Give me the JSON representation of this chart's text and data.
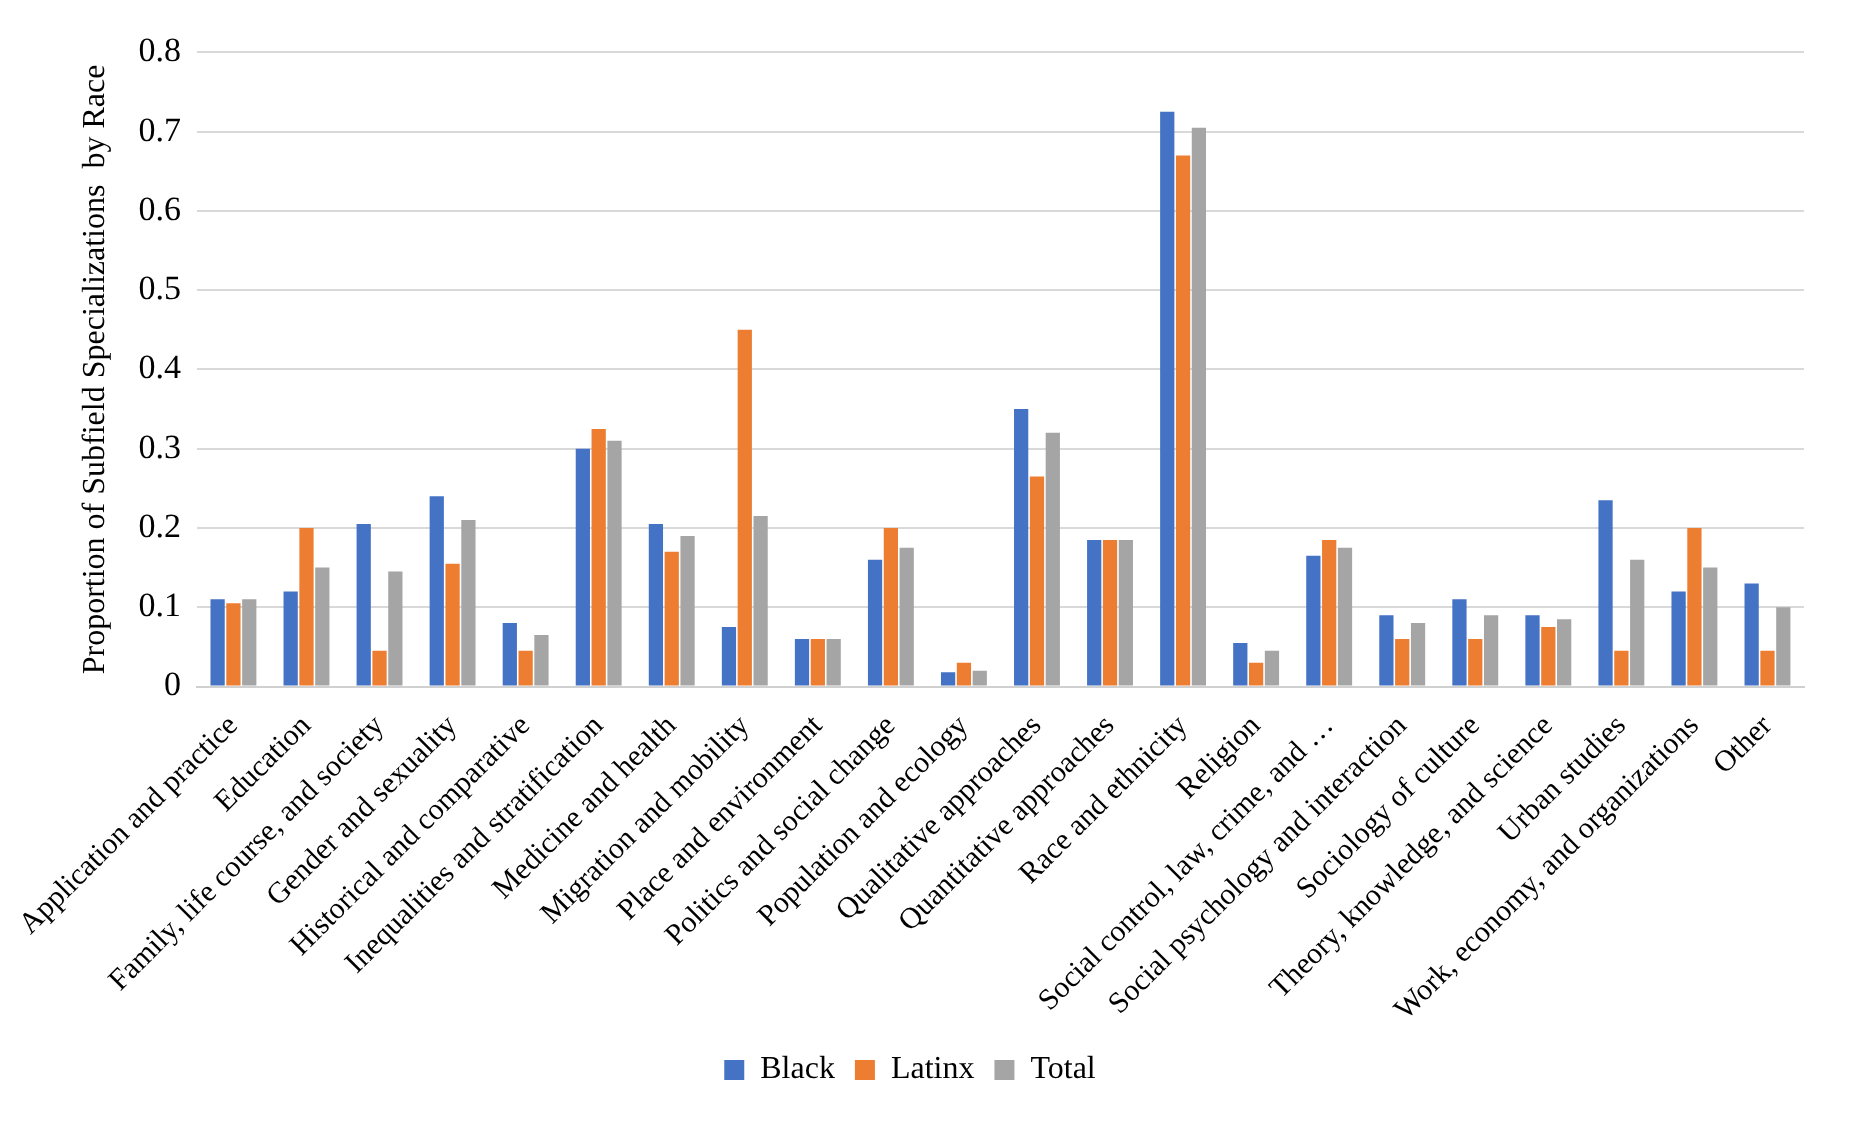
{
  "chart_data": {
    "type": "bar",
    "ylabel": "Proportion of Subfield Specializations  by Race",
    "categories": [
      "Application and practice",
      "Education",
      "Family, life course, and society",
      "Gender and sexuality",
      "Historical and comparative",
      "Inequalities and stratification",
      "Medicine and health",
      "Migration and mobility",
      "Place and environment",
      "Politics and social change",
      "Population and ecology",
      "Qualitative approaches",
      "Quantitative approaches",
      "Race and ethnicity",
      "Religion",
      "Social control, law, crime, and …",
      "Social psychology and interaction",
      "Sociology of culture",
      "Theory, knowledge, and science",
      "Urban studies",
      "Work, economy, and organizations",
      "Other"
    ],
    "series": [
      {
        "name": "Black",
        "color": "#4472c4",
        "values": [
          0.11,
          0.12,
          0.205,
          0.24,
          0.08,
          0.3,
          0.205,
          0.075,
          0.06,
          0.16,
          0.018,
          0.35,
          0.185,
          0.725,
          0.055,
          0.165,
          0.09,
          0.11,
          0.09,
          0.235,
          0.12,
          0.13
        ]
      },
      {
        "name": "Latinx",
        "color": "#ed7d31",
        "values": [
          0.105,
          0.2,
          0.045,
          0.155,
          0.045,
          0.325,
          0.17,
          0.45,
          0.06,
          0.2,
          0.03,
          0.265,
          0.185,
          0.67,
          0.03,
          0.185,
          0.06,
          0.06,
          0.075,
          0.045,
          0.2,
          0.045
        ]
      },
      {
        "name": "Total",
        "color": "#a5a5a5",
        "values": [
          0.11,
          0.15,
          0.145,
          0.21,
          0.065,
          0.31,
          0.19,
          0.215,
          0.06,
          0.175,
          0.02,
          0.32,
          0.185,
          0.705,
          0.045,
          0.175,
          0.08,
          0.09,
          0.085,
          0.16,
          0.15,
          0.1
        ]
      }
    ],
    "ylim": [
      0,
      0.8
    ],
    "yticks": [
      0,
      0.1,
      0.2,
      0.3,
      0.4,
      0.5,
      0.6,
      0.7,
      0.8
    ],
    "grid": "y",
    "legend": "bottom"
  }
}
